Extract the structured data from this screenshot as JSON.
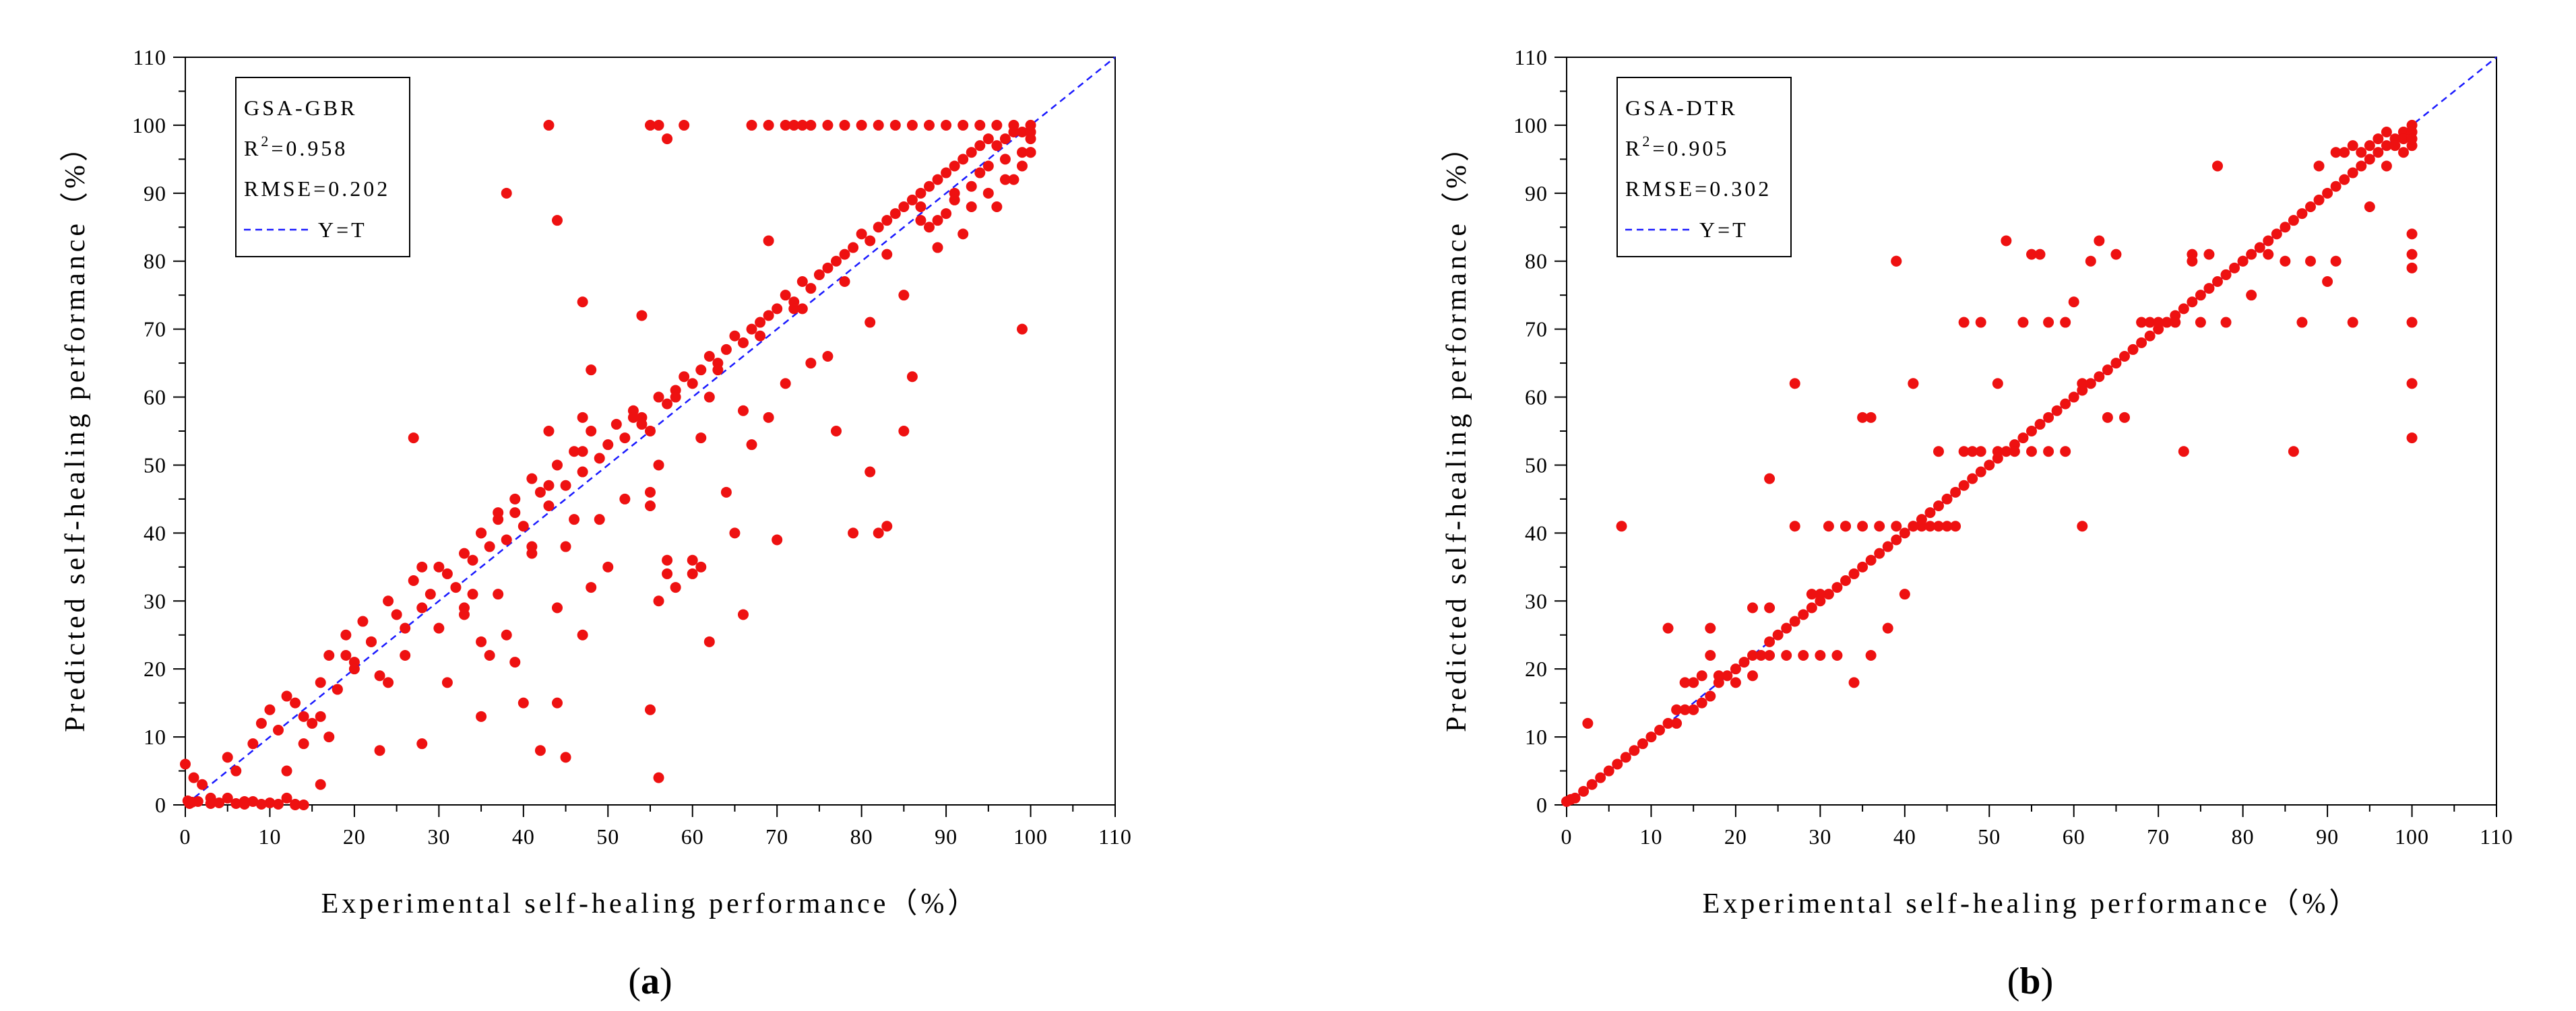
{
  "chart_data": [
    {
      "type": "scatter",
      "panel_label": "a",
      "xlabel": "Experimental self-healing performance（%）",
      "ylabel": "Predicted self-healing performance（%）",
      "xlim": [
        0,
        110
      ],
      "ylim": [
        0,
        110
      ],
      "xticks": [
        "0",
        "10",
        "20",
        "30",
        "40",
        "50",
        "60",
        "70",
        "80",
        "90",
        "100",
        "110"
      ],
      "yticks": [
        "0",
        "10",
        "20",
        "30",
        "40",
        "50",
        "60",
        "70",
        "80",
        "90",
        "100",
        "110"
      ],
      "legend": {
        "model": "GSA-GBR",
        "r2_label": "R",
        "r2_sup": "2",
        "r2_value": "=0.958",
        "rmse": "RMSE=0.202",
        "line_label": "Y=T",
        "position": "top-left"
      },
      "reference_line": {
        "name": "Y=T",
        "style": "dashed",
        "color": "#1a1aff"
      },
      "point_color": "#ee1111",
      "series": [
        {
          "name": "samples",
          "x": [
            0,
            1,
            2,
            3,
            5,
            7,
            8,
            10,
            12,
            14,
            0.5,
            1.5,
            3,
            4,
            6,
            9,
            11,
            13,
            0.3,
            0.8,
            5,
            6,
            8,
            9,
            10,
            11,
            12,
            13,
            14,
            15,
            16,
            17,
            18,
            19,
            20,
            21,
            22,
            23,
            24,
            25,
            26,
            27,
            28,
            29,
            30,
            31,
            32,
            33,
            34,
            35,
            36,
            37,
            38,
            39,
            40,
            41,
            42,
            43,
            44,
            45,
            46,
            47,
            48,
            49,
            50,
            51,
            52,
            53,
            54,
            55,
            56,
            57,
            58,
            59,
            60,
            61,
            62,
            63,
            64,
            65,
            66,
            67,
            68,
            69,
            70,
            71,
            72,
            73,
            74,
            75,
            76,
            77,
            78,
            79,
            80,
            81,
            82,
            83,
            84,
            85,
            86,
            87,
            88,
            89,
            90,
            91,
            92,
            93,
            94,
            95,
            96,
            97,
            98,
            99,
            100,
            12,
            14,
            16,
            18,
            20,
            22,
            24,
            26,
            28,
            30,
            33,
            35,
            37,
            39,
            41,
            43,
            45,
            47,
            49,
            52,
            54,
            56,
            58,
            61,
            63,
            66,
            68,
            71,
            73,
            76,
            78,
            81,
            83,
            85,
            87,
            89,
            91,
            93,
            95,
            97,
            99,
            27,
            38,
            43,
            44,
            55,
            56,
            57,
            59,
            67,
            69,
            71,
            72,
            73,
            74,
            76,
            78,
            80,
            82,
            84,
            86,
            88,
            90,
            92,
            94,
            96,
            98,
            44,
            45,
            47,
            48,
            55,
            56,
            60,
            62,
            70,
            82,
            99,
            42,
            47,
            54,
            55,
            56,
            57,
            61,
            66,
            69,
            7,
            13,
            16,
            17,
            19,
            23,
            28,
            31,
            33,
            35,
            34,
            35,
            36,
            37,
            38,
            39,
            40,
            41,
            43,
            44,
            46,
            47,
            48,
            50,
            53,
            55,
            57,
            58,
            60,
            62,
            64,
            65,
            67,
            69,
            72,
            74,
            77,
            79,
            81,
            83,
            85,
            86,
            87,
            88,
            89,
            90,
            91,
            92,
            93,
            94,
            95,
            96,
            97,
            98,
            99,
            100,
            100,
            100,
            100,
            100
          ],
          "y": [
            6,
            4,
            3,
            1,
            1,
            0.5,
            0.5,
            0.3,
            1,
            0,
            0.2,
            0.5,
            0.2,
            0.3,
            0.2,
            0.1,
            0.1,
            0.1,
            0.6,
            0.4,
            7,
            5,
            9,
            12,
            14,
            11,
            16,
            15,
            13,
            12,
            18,
            22,
            17,
            25,
            21,
            27,
            24,
            19,
            30,
            28,
            26,
            33,
            29,
            31,
            35,
            34,
            32,
            37,
            36,
            40,
            38,
            42,
            39,
            45,
            41,
            48,
            46,
            44,
            50,
            47,
            52,
            49,
            55,
            51,
            53,
            56,
            54,
            58,
            57,
            55,
            60,
            59,
            61,
            63,
            62,
            64,
            66,
            65,
            67,
            69,
            68,
            70,
            71,
            72,
            73,
            75,
            74,
            77,
            76,
            78,
            79,
            80,
            81,
            82,
            84,
            83,
            85,
            86,
            87,
            88,
            89,
            90,
            91,
            92,
            93,
            94,
            95,
            96,
            97,
            98,
            97,
            98,
            99,
            99,
            99,
            5,
            9,
            13,
            17,
            20,
            24,
            18,
            22,
            35,
            26,
            29,
            40,
            31,
            43,
            37,
            47,
            38,
            52,
            42,
            45,
            56,
            50,
            60,
            54,
            64,
            58,
            69,
            62,
            73,
            66,
            77,
            71,
            81,
            75,
            86,
            82,
            90,
            88,
            94,
            92,
            96,
            54,
            90,
            100,
            86,
            100,
            100,
            98,
            100,
            100,
            100,
            100,
            100,
            100,
            100,
            100,
            100,
            100,
            100,
            100,
            100,
            100,
            100,
            100,
            100,
            100,
            100,
            15,
            7,
            74,
            64,
            14,
            4,
            36,
            24,
            39,
            40,
            70,
            8,
            57,
            72,
            44,
            30,
            36,
            35,
            28,
            83,
            0.1,
            0,
            3,
            10,
            22,
            8,
            9,
            18,
            28,
            13,
            31,
            24,
            22,
            43,
            25,
            21,
            15,
            38,
            55,
            29,
            42,
            25,
            32,
            35,
            57,
            46,
            34,
            32,
            34,
            60,
            46,
            40,
            53,
            57,
            73,
            65,
            55,
            40,
            49,
            41,
            55,
            63,
            88,
            85,
            86,
            87,
            89,
            84,
            91,
            93,
            90,
            88,
            95,
            92,
            94,
            96,
            98,
            99,
            100,
            96
          ]
        }
      ]
    },
    {
      "type": "scatter",
      "panel_label": "b",
      "xlabel": "Experimental self-healing performance（%）",
      "ylabel": "Predicted self-healing performance（%）",
      "xlim": [
        0,
        110
      ],
      "ylim": [
        0,
        110
      ],
      "xticks": [
        "0",
        "10",
        "20",
        "30",
        "40",
        "50",
        "60",
        "70",
        "80",
        "90",
        "100",
        "110"
      ],
      "yticks": [
        "0",
        "10",
        "20",
        "30",
        "40",
        "50",
        "60",
        "70",
        "80",
        "90",
        "100",
        "110"
      ],
      "legend": {
        "model": "GSA-DTR",
        "r2_label": "R",
        "r2_sup": "2",
        "r2_value": "=0.905",
        "rmse": "RMSE=0.302",
        "line_label": "Y=T",
        "position": "top-left"
      },
      "reference_line": {
        "name": "Y=T",
        "style": "dashed",
        "color": "#1a1aff"
      },
      "point_color": "#ee1111",
      "series": [
        {
          "name": "samples",
          "x": [
            0,
            0.5,
            1,
            2,
            3,
            4,
            5,
            6,
            7,
            8,
            9,
            10,
            11,
            12,
            13,
            14,
            15,
            16,
            17,
            18,
            19,
            20,
            21,
            22,
            23,
            24,
            25,
            26,
            27,
            28,
            29,
            30,
            31,
            32,
            33,
            34,
            35,
            36,
            37,
            38,
            39,
            40,
            41,
            42,
            43,
            44,
            45,
            46,
            47,
            48,
            49,
            50,
            51,
            52,
            53,
            54,
            55,
            56,
            57,
            58,
            59,
            60,
            61,
            62,
            63,
            64,
            65,
            66,
            67,
            68,
            69,
            70,
            71,
            72,
            73,
            74,
            75,
            76,
            77,
            78,
            79,
            80,
            81,
            82,
            83,
            84,
            85,
            86,
            87,
            88,
            89,
            90,
            91,
            92,
            93,
            94,
            95,
            96,
            97,
            98,
            99,
            100,
            13,
            14,
            15,
            16,
            17,
            18,
            20,
            22,
            24,
            26,
            28,
            30,
            32,
            34,
            36,
            38,
            40,
            42,
            44,
            46,
            22,
            24,
            27,
            29,
            31,
            33,
            35,
            37,
            39,
            41,
            43,
            45,
            47,
            49,
            51,
            53,
            55,
            57,
            59,
            61,
            27,
            30,
            33,
            36,
            39,
            41,
            44,
            47,
            49,
            52,
            55,
            57,
            60,
            63,
            65,
            68,
            71,
            74,
            2.5,
            6.5,
            12,
            17,
            24,
            35,
            39,
            41,
            48,
            51,
            54,
            56,
            59,
            61,
            62,
            64,
            66,
            69,
            72,
            74,
            76,
            78,
            81,
            83,
            85,
            86,
            88,
            89,
            90,
            91,
            92,
            93,
            94,
            95,
            96,
            97,
            98,
            99,
            100,
            100,
            100,
            100,
            100,
            100,
            100,
            70,
            73,
            75,
            77,
            80,
            87,
            91,
            93,
            95,
            97,
            99,
            99,
            100,
            100,
            100
          ],
          "y": [
            0.5,
            0.8,
            1,
            2,
            3,
            4,
            5,
            6,
            7,
            8,
            9,
            10,
            11,
            12,
            12,
            14,
            14,
            15,
            16,
            18,
            19,
            20,
            21,
            22,
            22,
            24,
            25,
            26,
            27,
            28,
            29,
            30,
            31,
            32,
            33,
            34,
            35,
            36,
            37,
            38,
            39,
            40,
            41,
            42,
            43,
            44,
            45,
            46,
            47,
            48,
            49,
            50,
            51,
            52,
            53,
            54,
            55,
            56,
            57,
            58,
            59,
            60,
            61,
            62,
            63,
            64,
            65,
            66,
            67,
            68,
            69,
            70,
            71,
            72,
            73,
            74,
            75,
            76,
            77,
            78,
            79,
            80,
            81,
            82,
            83,
            84,
            85,
            86,
            87,
            88,
            89,
            90,
            91,
            92,
            93,
            94,
            95,
            96,
            97,
            98,
            99,
            99,
            14,
            18,
            18,
            19,
            22,
            19,
            18,
            19,
            22,
            22,
            22,
            22,
            22,
            18,
            22,
            26,
            31,
            41,
            41,
            41,
            29,
            29,
            41,
            31,
            41,
            41,
            41,
            41,
            41,
            41,
            41,
            41,
            52,
            52,
            52,
            52,
            52,
            52,
            52,
            62,
            62,
            31,
            41,
            57,
            80,
            62,
            52,
            71,
            71,
            83,
            81,
            71,
            74,
            83,
            81,
            71,
            71,
            81,
            12,
            41,
            26,
            26,
            48,
            57,
            80,
            62,
            52,
            62,
            71,
            81,
            71,
            41,
            80,
            57,
            57,
            71,
            71,
            80,
            81,
            71,
            75,
            81,
            80,
            52,
            80,
            94,
            77,
            80,
            96,
            97,
            96,
            97,
            98,
            99,
            97,
            99,
            84,
            81,
            79,
            71,
            62,
            54,
            97,
            71,
            52,
            71,
            94,
            80,
            71,
            96,
            71,
            88,
            94,
            98,
            96,
            99,
            100,
            98
          ]
        }
      ]
    }
  ]
}
